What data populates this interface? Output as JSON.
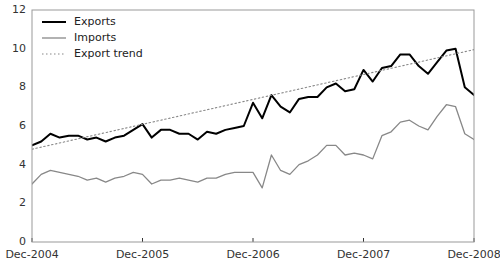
{
  "chart_data": {
    "type": "line",
    "x": [
      0,
      1,
      2,
      3,
      4,
      5,
      6,
      7,
      8,
      9,
      10,
      11,
      12,
      13,
      14,
      15,
      16,
      17,
      18,
      19,
      20,
      21,
      22,
      23,
      24,
      25,
      26,
      27,
      28,
      29,
      30,
      31,
      32,
      33,
      34,
      35,
      36,
      37,
      38,
      39,
      40,
      41,
      42,
      43,
      44,
      45,
      46,
      47,
      48
    ],
    "series": [
      {
        "name": "Exports",
        "color": "#000000",
        "line_style": "solid",
        "values": [
          5.0,
          5.2,
          5.6,
          5.4,
          5.5,
          5.5,
          5.3,
          5.4,
          5.2,
          5.4,
          5.5,
          5.8,
          6.1,
          5.4,
          5.8,
          5.8,
          5.6,
          5.6,
          5.3,
          5.7,
          5.6,
          5.8,
          5.9,
          6.0,
          7.2,
          6.4,
          7.6,
          7.0,
          6.7,
          7.4,
          7.5,
          7.5,
          8.0,
          8.2,
          7.8,
          7.9,
          8.9,
          8.3,
          9.0,
          9.1,
          9.7,
          9.7,
          9.1,
          8.7,
          9.3,
          9.9,
          10.0,
          8.0,
          7.6
        ]
      },
      {
        "name": "Imports",
        "color": "#888888",
        "line_style": "solid",
        "values": [
          3.0,
          3.5,
          3.7,
          3.6,
          3.5,
          3.4,
          3.2,
          3.3,
          3.1,
          3.3,
          3.4,
          3.6,
          3.5,
          3.0,
          3.2,
          3.2,
          3.3,
          3.2,
          3.1,
          3.3,
          3.3,
          3.5,
          3.6,
          3.6,
          3.6,
          2.8,
          4.5,
          3.7,
          3.5,
          4.0,
          4.2,
          4.5,
          5.0,
          5.0,
          4.5,
          4.6,
          4.5,
          4.3,
          5.5,
          5.7,
          6.2,
          6.3,
          6.0,
          5.8,
          6.5,
          7.1,
          7.0,
          5.6,
          5.3
        ]
      },
      {
        "name": "Export trend",
        "color": "#888888",
        "line_style": "dotted",
        "x": [
          0,
          48
        ],
        "values": [
          4.8,
          9.95
        ]
      }
    ],
    "xlim": [
      0,
      48
    ],
    "xticks": [
      {
        "value": 0,
        "label": "Dec-2004"
      },
      {
        "value": 12,
        "label": "Dec-2005"
      },
      {
        "value": 24,
        "label": "Dec-2006"
      },
      {
        "value": 36,
        "label": "Dec-2007"
      },
      {
        "value": 48,
        "label": "Dec-2008"
      }
    ],
    "ylim": [
      0,
      12
    ],
    "yticks": [
      0,
      2,
      4,
      6,
      8,
      10,
      12
    ],
    "grid": false,
    "legend": "upper left"
  }
}
